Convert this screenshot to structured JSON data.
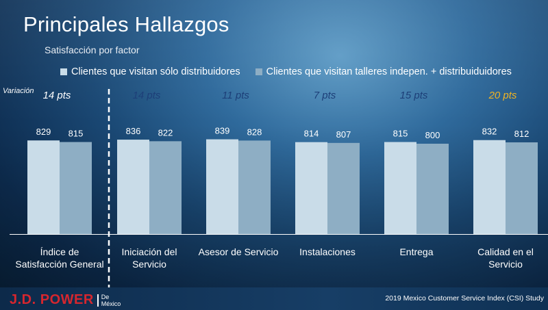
{
  "title": "Principales Hallazgos",
  "subtitle": "Satisfacción por factor",
  "variation_label": "Variación",
  "footer": {
    "brand": "J.D. POWER",
    "brand_sub_1": "De",
    "brand_sub_2": "México",
    "study": "2019 Mexico Customer Service Index (CSI) Study"
  },
  "colors": {
    "series_1": "#c9dce8",
    "series_2": "#8eaec4",
    "variation_default": "#1d3f78",
    "variation_highlight": "#f0b323",
    "text": "#ffffff"
  },
  "chart_data": {
    "type": "bar",
    "title": "Principales Hallazgos",
    "subtitle": "Satisfacción por factor",
    "legend_placement": "top",
    "grid": false,
    "ylim": [
      0,
      1000
    ],
    "categories": [
      [
        "Índice de",
        "Satisfacción General"
      ],
      [
        "Iniciación del",
        "Servicio"
      ],
      [
        "Asesor de Servicio"
      ],
      [
        "Instalaciones"
      ],
      [
        "Entrega"
      ],
      [
        "Calidad en el",
        "Servicio"
      ]
    ],
    "series": [
      {
        "name": "Clientes que  visitan sólo distribuidores",
        "values": [
          829,
          836,
          839,
          814,
          815,
          832
        ]
      },
      {
        "name": "Clientes que visitan talleres indepen. + distribuiduidores",
        "values": [
          815,
          822,
          828,
          807,
          800,
          812
        ]
      }
    ],
    "variation": [
      "14 pts",
      "14 pts",
      "11 pts",
      "7 pts",
      "15 pts",
      "20 pts"
    ],
    "variation_highlight_index": 5
  }
}
